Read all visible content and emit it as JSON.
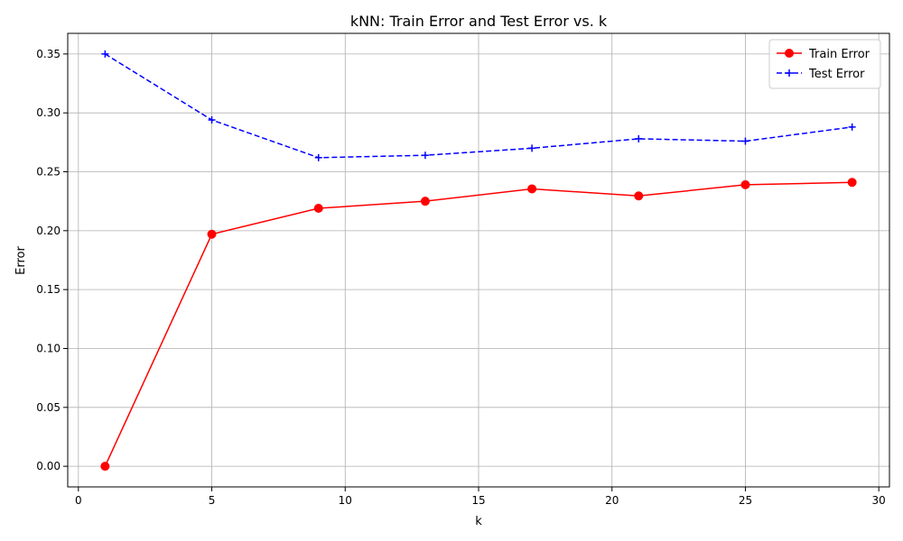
{
  "chart_data": {
    "type": "line",
    "title": "kNN: Train Error and Test Error vs. k",
    "xlabel": "k",
    "ylabel": "Error",
    "xlim": [
      -0.4,
      30.4
    ],
    "ylim": [
      -0.0175,
      0.3675
    ],
    "xticks": [
      0,
      5,
      10,
      15,
      20,
      25,
      30
    ],
    "xtick_labels": [
      "0",
      "5",
      "10",
      "15",
      "20",
      "25",
      "30"
    ],
    "yticks": [
      0.0,
      0.05,
      0.1,
      0.15,
      0.2,
      0.25,
      0.3,
      0.35
    ],
    "ytick_labels": [
      "0.00",
      "0.05",
      "0.10",
      "0.15",
      "0.20",
      "0.25",
      "0.30",
      "0.35"
    ],
    "grid": true,
    "legend_position": "top-right",
    "x": [
      1,
      5,
      9,
      13,
      17,
      21,
      25,
      29
    ],
    "series": [
      {
        "name": "Train Error",
        "values": [
          0.0,
          0.197,
          0.219,
          0.225,
          0.2355,
          0.2295,
          0.239,
          0.241
        ],
        "color": "#ff0000",
        "line_style": "solid",
        "marker": "circle"
      },
      {
        "name": "Test Error",
        "values": [
          0.35,
          0.294,
          0.262,
          0.264,
          0.27,
          0.278,
          0.276,
          0.288
        ],
        "color": "#0000ff",
        "line_style": "dashed",
        "marker": "plus"
      }
    ]
  }
}
